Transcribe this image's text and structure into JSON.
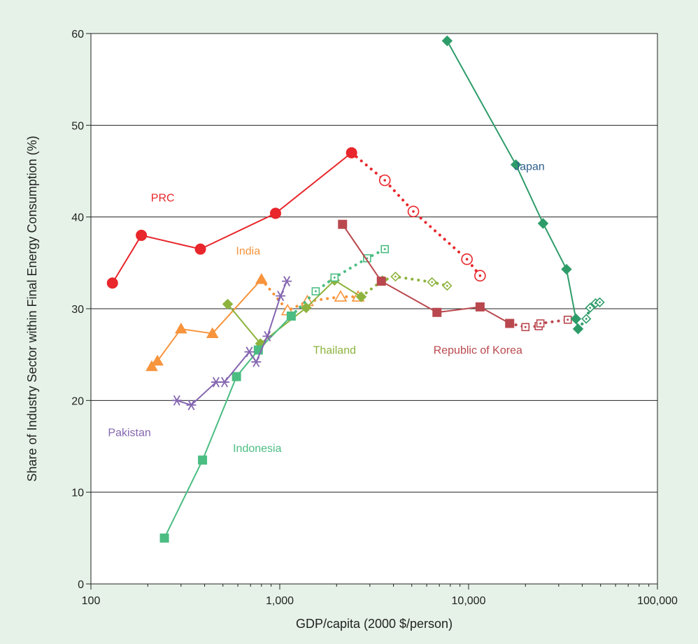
{
  "chart_data": {
    "type": "scatter",
    "xlabel": "GDP/capita (2000 $/person)",
    "ylabel": "Share of Industry Sector within Final Energy Consumption (%)",
    "xscale": "log",
    "xlim": [
      100,
      100000
    ],
    "ylim": [
      0,
      60
    ],
    "xticks": [
      100,
      1000,
      10000,
      100000
    ],
    "xtick_labels": [
      "100",
      "1,000",
      "10,000",
      "100,000"
    ],
    "yticks": [
      0,
      10,
      20,
      30,
      40,
      50,
      60
    ],
    "grid": "horizontal",
    "background": "#e6f2e8",
    "plot_background": "#ffffff",
    "series": [
      {
        "name": "PRC",
        "color": "#e8262b",
        "marker": "circle",
        "historical": [
          [
            130,
            32.8
          ],
          [
            185,
            38
          ],
          [
            380,
            36.5
          ],
          [
            950,
            40.4
          ],
          [
            2400,
            47
          ]
        ],
        "projected": [
          [
            2400,
            47
          ],
          [
            3600,
            44
          ],
          [
            5100,
            40.6
          ],
          [
            9800,
            35.4
          ],
          [
            11500,
            33.6
          ]
        ]
      },
      {
        "name": "India",
        "color": "#f7943c",
        "marker": "triangle",
        "historical": [
          [
            210,
            23.7
          ],
          [
            225,
            24.3
          ],
          [
            300,
            27.8
          ],
          [
            440,
            27.3
          ],
          [
            800,
            33.2
          ]
        ],
        "projected": [
          [
            800,
            33.2
          ],
          [
            1100,
            29.8
          ],
          [
            1400,
            30.8
          ],
          [
            2100,
            31.3
          ],
          [
            2600,
            31.3
          ]
        ]
      },
      {
        "name": "Thailand",
        "color": "#8db33e",
        "marker": "diamond",
        "historical": [
          [
            530,
            30.5
          ],
          [
            790,
            26.2
          ],
          [
            1380,
            30.1
          ],
          [
            1950,
            33.1
          ],
          [
            2700,
            31.3
          ]
        ],
        "projected": [
          [
            2700,
            31.3
          ],
          [
            3500,
            33.1
          ],
          [
            4100,
            33.5
          ],
          [
            6400,
            32.9
          ],
          [
            7700,
            32.5
          ]
        ]
      },
      {
        "name": "Indonesia",
        "color": "#4bbd82",
        "marker": "square",
        "historical": [
          [
            245,
            5
          ],
          [
            390,
            13.5
          ],
          [
            590,
            22.6
          ],
          [
            770,
            25.5
          ],
          [
            1150,
            29.2
          ]
        ],
        "projected": [
          [
            1150,
            29.2
          ],
          [
            1550,
            31.9
          ],
          [
            1950,
            33.4
          ],
          [
            2900,
            35.5
          ],
          [
            3600,
            36.5
          ]
        ]
      },
      {
        "name": "Pakistan",
        "color": "#8566b0",
        "marker": "asterisk",
        "historical": [
          [
            285,
            20
          ],
          [
            340,
            19.5
          ],
          [
            460,
            22
          ],
          [
            510,
            22
          ],
          [
            690,
            25.3
          ],
          [
            750,
            24.2
          ],
          [
            860,
            27
          ],
          [
            1010,
            31.4
          ],
          [
            1090,
            33
          ]
        ],
        "projected": []
      },
      {
        "name": "Republic of Korea",
        "color": "#b9484e",
        "marker": "square",
        "historical": [
          [
            2150,
            39.2
          ],
          [
            3450,
            33
          ],
          [
            6800,
            29.6
          ],
          [
            11500,
            30.2
          ],
          [
            16500,
            28.4
          ]
        ],
        "projected": [
          [
            16500,
            28.4
          ],
          [
            20000,
            28
          ],
          [
            23500,
            28.1
          ],
          [
            24000,
            28.4
          ],
          [
            33500,
            28.8
          ]
        ]
      },
      {
        "name": "Japan",
        "color": "#2e9c69",
        "marker": "diamond",
        "historical": [
          [
            7700,
            59.2
          ],
          [
            17800,
            45.7
          ],
          [
            24800,
            39.3
          ],
          [
            33000,
            34.3
          ],
          [
            37000,
            28.9
          ],
          [
            38000,
            27.8
          ]
        ],
        "projected": [
          [
            38000,
            27.8
          ],
          [
            42000,
            28.9
          ],
          [
            44000,
            30.1
          ],
          [
            47000,
            30.6
          ],
          [
            49500,
            30.7
          ]
        ]
      }
    ],
    "labels": [
      {
        "series": "PRC",
        "text": "PRC",
        "at": [
          240,
          41.7
        ]
      },
      {
        "series": "India",
        "text": "India",
        "at": [
          680,
          35.9
        ]
      },
      {
        "series": "Thailand",
        "text": "Thailand",
        "at": [
          1950,
          25.1
        ]
      },
      {
        "series": "Indonesia",
        "text": "Indonesia",
        "at": [
          760,
          14.4
        ]
      },
      {
        "series": "Pakistan",
        "text": "Pakistan",
        "at": [
          160,
          16.1
        ]
      },
      {
        "series": "Republic of Korea",
        "text": "Republic of Korea",
        "at": [
          11200,
          25.1
        ]
      },
      {
        "series": "Japan",
        "text": "Japan",
        "at": [
          21000,
          45.1
        ]
      }
    ]
  }
}
